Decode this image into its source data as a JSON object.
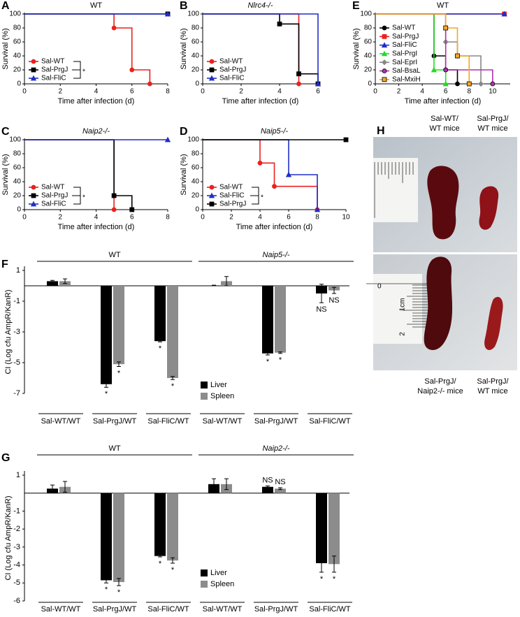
{
  "chart_data": [
    {
      "panel": "A",
      "type": "step",
      "title": "WT",
      "xlabel": "Time after infection (d)",
      "ylabel": "Survival (%)",
      "xlim": [
        0,
        8
      ],
      "xticks": [
        0,
        2,
        4,
        6,
        8
      ],
      "ylim": [
        0,
        100
      ],
      "yticks": [
        0,
        20,
        40,
        60,
        80,
        100
      ],
      "legend": "lower left",
      "annotation": "*",
      "series": [
        {
          "name": "Sal-WT",
          "color": "#e8221f",
          "marker": "circle",
          "x": [
            0,
            5,
            6,
            7
          ],
          "values": [
            100,
            80,
            20,
            0
          ]
        },
        {
          "name": "Sal-PrgJ",
          "color": "#000000",
          "marker": "square",
          "x": [
            0,
            8
          ],
          "values": [
            100,
            100
          ]
        },
        {
          "name": "Sal-FliC",
          "color": "#1f2fc8",
          "marker": "triangle",
          "x": [
            0,
            8
          ],
          "values": [
            100,
            100
          ]
        }
      ]
    },
    {
      "panel": "B",
      "type": "step",
      "title": "Nlrc4-/-",
      "title_style": "italic",
      "xlabel": "Time after infection (d)",
      "ylabel": "Survival (%)",
      "xlim": [
        0,
        6
      ],
      "xticks": [
        0,
        2,
        4,
        6
      ],
      "ylim": [
        0,
        100
      ],
      "yticks": [
        0,
        20,
        40,
        60,
        80,
        100
      ],
      "legend": "lower left",
      "series": [
        {
          "name": "Sal-WT",
          "color": "#e8221f",
          "marker": "circle",
          "x": [
            0,
            5
          ],
          "values": [
            100,
            0
          ]
        },
        {
          "name": "Sal-PrgJ",
          "color": "#000000",
          "marker": "square",
          "x": [
            0,
            4,
            5,
            6
          ],
          "values": [
            100,
            85.7,
            14.3,
            0
          ]
        },
        {
          "name": "Sal-FliC",
          "color": "#1f2fc8",
          "marker": "triangle",
          "x": [
            0,
            6
          ],
          "values": [
            100,
            0
          ]
        }
      ]
    },
    {
      "panel": "E",
      "type": "step",
      "title": "WT",
      "xlabel": "Time after infection (d)",
      "ylabel": "Survival (%)",
      "xlim": [
        0,
        11.5
      ],
      "xticks": [
        0,
        2,
        4,
        6,
        8,
        10
      ],
      "ylim": [
        0,
        100
      ],
      "yticks": [
        0,
        20,
        40,
        60,
        80,
        100
      ],
      "legend": "center left",
      "series": [
        {
          "name": "Sal-WT",
          "color": "#000000",
          "marker": "circle",
          "x": [
            0,
            5,
            6,
            7
          ],
          "values": [
            100,
            40,
            20,
            0
          ]
        },
        {
          "name": "Sal-PrgJ",
          "color": "#e8221f",
          "marker": "square",
          "x": [
            0,
            11
          ],
          "values": [
            100,
            100
          ]
        },
        {
          "name": "Sal-FliC",
          "color": "#1f2fc8",
          "marker": "triangle",
          "x": [
            0,
            11
          ],
          "values": [
            100,
            100
          ]
        },
        {
          "name": "Sal-PrgI",
          "color": "#22dd22",
          "marker": "triangle",
          "x": [
            0,
            5,
            6
          ],
          "values": [
            100,
            20,
            0
          ]
        },
        {
          "name": "Sal-EprI",
          "color": "#888888",
          "marker": "diamond",
          "x": [
            0,
            6,
            7,
            9
          ],
          "values": [
            100,
            60,
            40,
            0
          ]
        },
        {
          "name": "Sal-BsaL",
          "color": "#b030b0",
          "marker": "circle",
          "edge": "#000000",
          "x": [
            0,
            6,
            10
          ],
          "values": [
            100,
            20,
            0
          ]
        },
        {
          "name": "Sal-MxiH",
          "color": "#f5a623",
          "marker": "square",
          "edge": "#000000",
          "x": [
            0,
            6,
            7,
            8
          ],
          "values": [
            100,
            80,
            40,
            0
          ]
        }
      ]
    },
    {
      "panel": "C",
      "type": "step",
      "title": "Naip2-/-",
      "title_style": "italic",
      "xlabel": "Time after infection (d)",
      "ylabel": "Survival (%)",
      "xlim": [
        0,
        8
      ],
      "xticks": [
        0,
        2,
        4,
        6,
        8
      ],
      "ylim": [
        0,
        100
      ],
      "yticks": [
        0,
        20,
        40,
        60,
        80,
        100
      ],
      "legend": "lower left",
      "annotation": "*",
      "series": [
        {
          "name": "Sal-WT",
          "color": "#e8221f",
          "marker": "circle",
          "x": [
            0,
            5
          ],
          "values": [
            100,
            0
          ]
        },
        {
          "name": "Sal-PrgJ",
          "color": "#000000",
          "marker": "square",
          "x": [
            0,
            5,
            6
          ],
          "values": [
            100,
            20,
            0
          ]
        },
        {
          "name": "Sal-FliC",
          "color": "#1f2fc8",
          "marker": "triangle",
          "x": [
            0,
            8
          ],
          "values": [
            100,
            100
          ]
        }
      ]
    },
    {
      "panel": "D",
      "type": "step",
      "title": "Naip5-/-",
      "title_style": "italic",
      "xlabel": "Time after infection (d)",
      "ylabel": "Survival (%)",
      "xlim": [
        0,
        10
      ],
      "xticks": [
        0,
        2,
        4,
        6,
        8,
        10
      ],
      "ylim": [
        0,
        100
      ],
      "yticks": [
        0,
        20,
        40,
        60,
        80,
        100
      ],
      "legend": "lower left",
      "annotation": "*",
      "series": [
        {
          "name": "Sal-WT",
          "color": "#e8221f",
          "marker": "circle",
          "x": [
            0,
            4,
            5,
            8
          ],
          "values": [
            100,
            66.7,
            33.3,
            0
          ]
        },
        {
          "name": "Sal-FliC",
          "color": "#1f2fc8",
          "marker": "triangle",
          "x": [
            0,
            6,
            8
          ],
          "values": [
            100,
            50,
            0
          ]
        },
        {
          "name": "Sal-PrgJ",
          "color": "#000000",
          "marker": "square",
          "x": [
            0,
            10
          ],
          "values": [
            100,
            100
          ]
        }
      ]
    },
    {
      "panel": "F",
      "type": "bar",
      "ylabel": "CI (Log cfu AmpR/KanR)",
      "ylim": [
        -7,
        1
      ],
      "yticks": [
        -7,
        -5,
        -3,
        -1,
        1
      ],
      "groups": [
        "WT",
        "Naip5-/-"
      ],
      "legend": "lower center",
      "categories": [
        "Sal-WT/WT",
        "Sal-PrgJ/WT",
        "Sal-FliC/WT",
        "Sal-WT/WT",
        "Sal-PrgJ/WT",
        "Sal-FliC/WT"
      ],
      "series": [
        {
          "name": "Liver",
          "color": "#000000",
          "values": [
            0.3,
            -6.4,
            -3.6,
            0.02,
            -4.4,
            -0.5
          ],
          "errors": [
            0.05,
            0.2,
            0.05,
            0.02,
            0.1,
            0.6
          ],
          "labels": [
            null,
            "*",
            "*",
            null,
            "*",
            "NS"
          ]
        },
        {
          "name": "Spleen",
          "color": "#8c8c8c",
          "values": [
            0.3,
            -5.1,
            -6.0,
            0.3,
            -4.35,
            -0.3
          ],
          "errors": [
            0.15,
            0.15,
            0.1,
            0.3,
            0.05,
            0.2
          ],
          "labels": [
            null,
            "*",
            "*",
            null,
            "*",
            "NS"
          ]
        }
      ]
    },
    {
      "panel": "G",
      "type": "bar",
      "ylabel": "CI (Log cfu AmpR/KanR)",
      "ylim": [
        -6,
        1
      ],
      "yticks": [
        -6,
        -5,
        -4,
        -3,
        -2,
        -1,
        1
      ],
      "groups": [
        "WT",
        "Naip2-/-"
      ],
      "legend": "lower center",
      "categories": [
        "Sal-WT/WT",
        "Sal-PrgJ/WT",
        "Sal-FliC/WT",
        "Sal-WT/WT",
        "Sal-PrgJ/WT",
        "Sal-FliC/WT"
      ],
      "series": [
        {
          "name": "Liver",
          "color": "#000000",
          "values": [
            0.25,
            -4.85,
            -3.5,
            0.5,
            0.35,
            -3.9
          ],
          "errors": [
            0.2,
            0.15,
            0.05,
            0.3,
            0.05,
            0.5
          ],
          "labels": [
            null,
            "*",
            "*",
            null,
            "NS",
            "*"
          ]
        },
        {
          "name": "Spleen",
          "color": "#8c8c8c",
          "values": [
            0.35,
            -4.95,
            -3.75,
            0.5,
            0.25,
            -3.95
          ],
          "errors": [
            0.3,
            0.2,
            0.15,
            0.3,
            0.05,
            0.45
          ],
          "labels": [
            null,
            "*",
            "*",
            null,
            "NS",
            "*"
          ]
        }
      ]
    }
  ],
  "photo_panel": {
    "panel": "H",
    "top_left": [
      "Sal-WT/",
      "WT mice"
    ],
    "top_right": [
      "Sal-PrgJ/",
      "WT mice"
    ],
    "bottom_left": [
      "Sal-PrgJ/",
      "Naip2-/- mice"
    ],
    "bottom_right": [
      "Sal-PrgJ/",
      "WT mice"
    ],
    "ruler": [
      "0",
      "1cm",
      "2"
    ]
  }
}
